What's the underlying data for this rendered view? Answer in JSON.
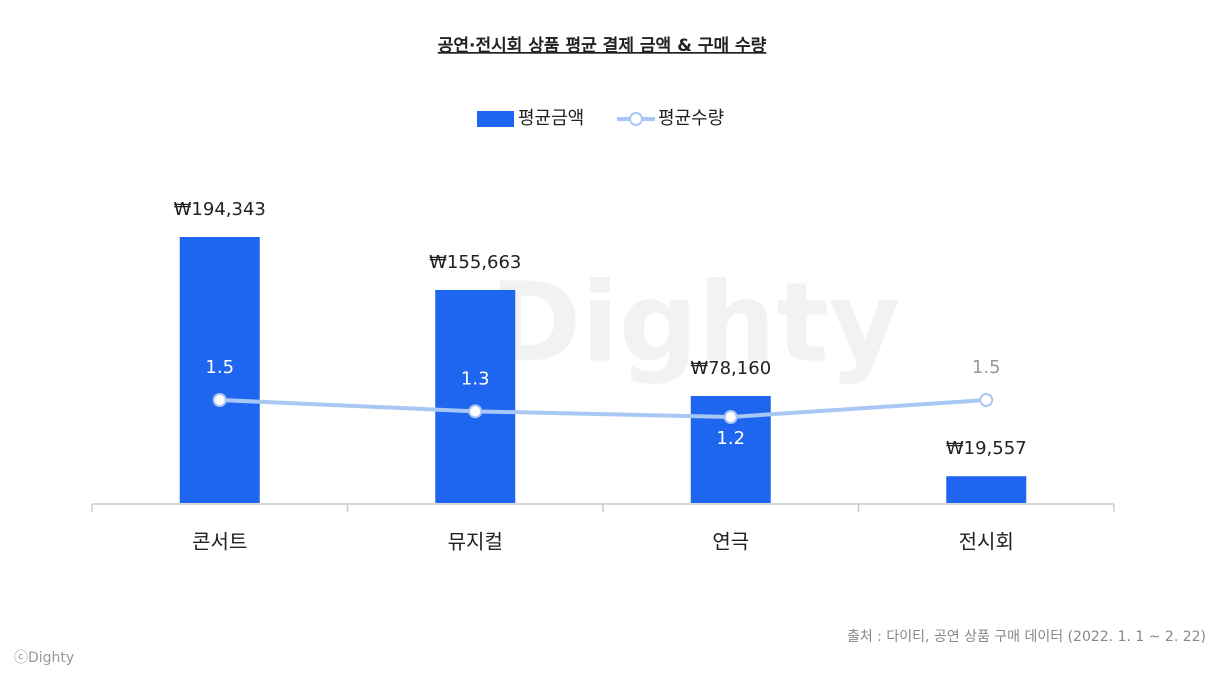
{
  "chart_data": {
    "type": "bar-line",
    "title": "공연·전시회 상품 평균 결제 금액 & 구매  수량",
    "categories": [
      "콘서트",
      "뮤지컬",
      "연극",
      "전시회"
    ],
    "series": [
      {
        "name": "평균금액",
        "type": "bar",
        "color": "#1e66f0",
        "values": [
          194343,
          155663,
          78160,
          19557
        ],
        "value_labels": [
          "₩194,343",
          "₩155,663",
          "₩78,160",
          "₩19,557"
        ]
      },
      {
        "name": "평균수량",
        "type": "line",
        "color": "#a9c7f5",
        "values": [
          1.5,
          1.3,
          1.2,
          1.5
        ]
      }
    ],
    "source": "출처 : 다이티, 공연 상품 구매 데이터 (2022. 1. 1 ~ 2. 22)",
    "credit": "ⓒDighty",
    "watermark": "Dighty"
  }
}
